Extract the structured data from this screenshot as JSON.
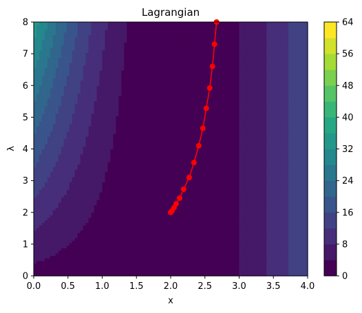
{
  "chart_data": {
    "type": "contourf",
    "title": "Lagrangian",
    "xlabel": "x",
    "ylabel": "λ",
    "xlim": [
      0,
      4
    ],
    "ylim": [
      0,
      8
    ],
    "x_ticks": [
      "0.0",
      "0.5",
      "1.0",
      "1.5",
      "2.0",
      "2.5",
      "3.0",
      "3.5",
      "4.0"
    ],
    "y_ticks": [
      "0",
      "1",
      "2",
      "3",
      "4",
      "5",
      "6",
      "7",
      "8"
    ],
    "colorbar": {
      "ticks": [
        "0",
        "8",
        "16",
        "24",
        "32",
        "40",
        "48",
        "56",
        "64"
      ],
      "levels": [
        0,
        4,
        8,
        12,
        16,
        20,
        24,
        28,
        32,
        36,
        40,
        44,
        48,
        52,
        56,
        60,
        64
      ],
      "colormap": "viridis"
    },
    "series": [
      {
        "color": "#ff0000",
        "x": [
          2.0,
          2.02,
          2.05,
          2.08,
          2.13,
          2.19,
          2.27,
          2.34,
          2.41,
          2.47,
          2.52,
          2.57,
          2.61,
          2.64,
          2.67
        ],
        "y": [
          2.0,
          2.05,
          2.15,
          2.27,
          2.45,
          2.73,
          3.1,
          3.57,
          4.1,
          4.65,
          5.28,
          5.92,
          6.6,
          7.3,
          8.0
        ]
      }
    ]
  }
}
